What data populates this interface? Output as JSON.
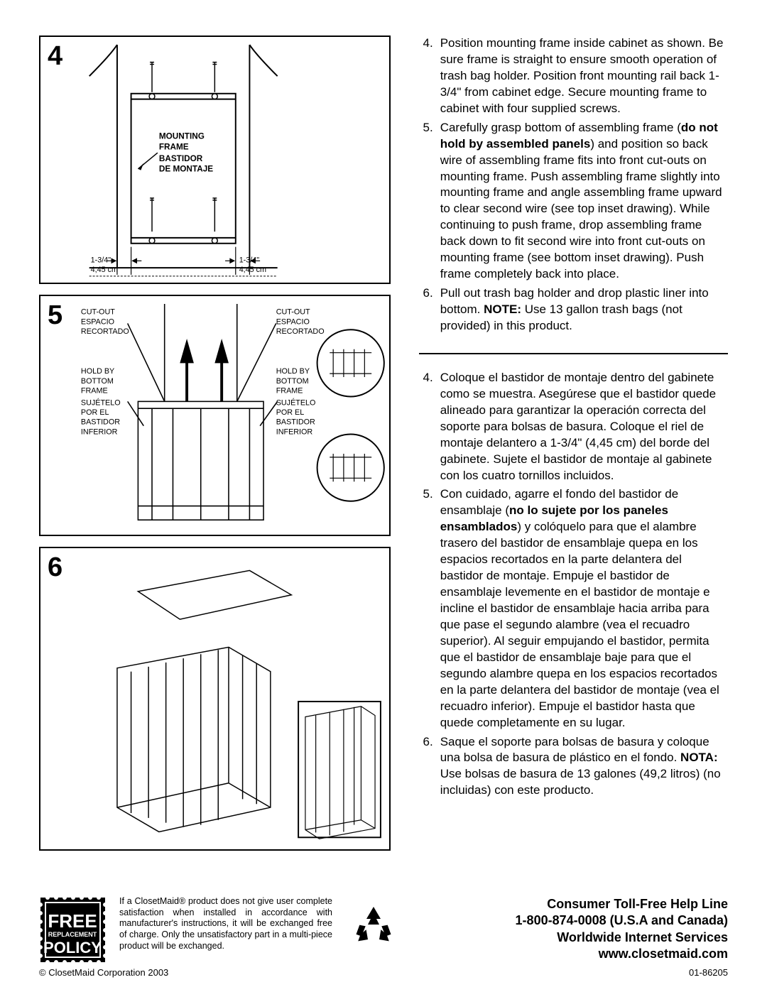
{
  "steps": {
    "s4": {
      "num": "4"
    },
    "s5": {
      "num": "5"
    },
    "s6": {
      "num": "6"
    }
  },
  "diagram4": {
    "label_en1": "MOUNTING",
    "label_en2": "FRAME",
    "label_es1": "BASTIDOR",
    "label_es2": "DE MONTAJE",
    "dim_in": "1-3/4\"",
    "dim_cm": "4,45 cm"
  },
  "diagram5": {
    "cutout_en": "CUT-OUT",
    "cutout_es1": "ESPACIO",
    "cutout_es2": "RECORTADO",
    "hold_en1": "HOLD BY",
    "hold_en2": "BOTTOM",
    "hold_en3": "FRAME",
    "hold_es1": "SUJÉTELO",
    "hold_es2": "POR EL",
    "hold_es3": "BASTIDOR",
    "hold_es4": "INFERIOR"
  },
  "english": [
    {
      "n": "4.",
      "text": "Position mounting frame inside cabinet as shown.  Be sure frame is straight to ensure smooth operation of trash bag holder.  Position front mounting rail back 1-3/4\" from cabinet edge. Secure mounting frame to cabinet with four supplied screws."
    },
    {
      "n": "5.",
      "text": "Carefully grasp bottom of assembling frame (<b>do not hold by assembled panels</b>) and position so back wire of assembling frame fits into front cut-outs on mounting frame.  Push assembling frame slightly into mounting frame and angle assembling frame upward to clear second wire (see top inset drawing).  While continuing to push frame, drop assembling frame back down to fit second wire into front cut-outs on mounting frame (see bottom inset drawing). Push frame completely back into place."
    },
    {
      "n": "6.",
      "text": "Pull out trash bag holder and drop plastic liner into bottom.  <b>NOTE:</b>  Use 13 gallon trash bags (not provided) in this product."
    }
  ],
  "spanish": [
    {
      "n": "4.",
      "text": "Coloque el bastidor de montaje dentro del gabinete como se muestra. Asegúrese que el bastidor quede alineado para garantizar la operación correcta del soporte para bolsas de basura. Coloque el riel de montaje delantero a 1-3/4\" (4,45 cm) del borde del gabinete. Sujete el bastidor de montaje al gabinete con los cuatro tornillos incluidos."
    },
    {
      "n": "5.",
      "text": "Con cuidado, agarre el fondo del bastidor de ensamblaje (<b>no lo sujete por los paneles ensamblados</b>) y colóquelo para que el alambre trasero del bastidor de ensamblaje quepa en los espacios recortados en la parte delantera del bastidor de montaje. Empuje el bastidor de ensamblaje levemente en el bastidor de montaje e incline el bastidor de ensamblaje hacia arriba para que pase el segundo alambre (vea el recuadro superior). Al seguir empujando el bastidor, permita que el bastidor de ensamblaje baje para que el segundo alambre quepa en los espacios recortados en la parte delantera del bastidor de montaje (vea el recuadro inferior). Empuje el bastidor hasta que quede completamente en su lugar."
    },
    {
      "n": "6.",
      "text": "Saque el soporte para bolsas de basura y coloque una bolsa de basura de plástico en el fondo. <b>NOTA:</b> Use bolsas de basura de 13 galones (49,2 litros) (no incluidas) con este producto."
    }
  ],
  "policy": {
    "stamp_line1": "FREE",
    "stamp_line2": "REPLACEMENT",
    "stamp_line3": "POLICY",
    "text": "If a ClosetMaid® product does not give user complete satisfaction when installed in accordance with manufacturer's instructions, it will be exchanged free of charge. Only the unsatisfactory part in a multi-piece product will be exchanged."
  },
  "help": {
    "line1": "Consumer Toll-Free Help Line",
    "line2": "1-800-874-0008 (U.S.A and Canada)",
    "line3": "Worldwide Internet Services",
    "line4": "www.closetmaid.com"
  },
  "bottom": {
    "left": "© ClosetMaid Corporation  2003",
    "right": "01-86205"
  }
}
